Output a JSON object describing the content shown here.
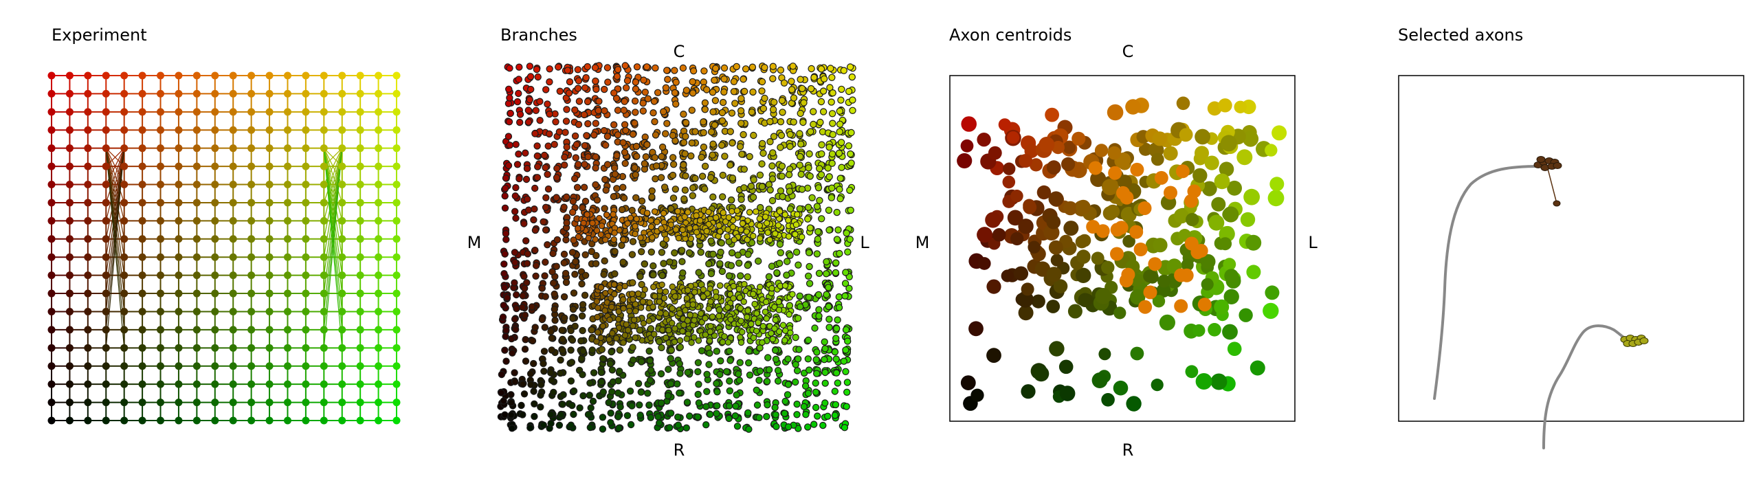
{
  "chart_data": [
    {
      "type": "scatter",
      "title": "Experiment",
      "grid": {
        "columns": 20,
        "rows": 20
      },
      "color_map": {
        "top-left": "#d10000",
        "top-right": "#e8e800",
        "bottom-left": "#000000",
        "bottom-right": "#00dd00"
      },
      "crossed_columns": [
        4,
        16
      ]
    },
    {
      "type": "scatter",
      "title": "Branches",
      "direction_labels": {
        "top": "C",
        "bottom": "R",
        "left": "M",
        "right": "L"
      },
      "approx_point_count": 2200
    },
    {
      "type": "scatter",
      "title": "Axon centroids",
      "direction_labels": {
        "top": "C",
        "bottom": "R",
        "left": "M",
        "right": "L"
      },
      "approx_point_count": 320
    },
    {
      "type": "line",
      "title": "Selected axons",
      "series_count": 2
    }
  ],
  "colors": {
    "axon_trace": "#888888",
    "cluster_dark": "#5c3312",
    "cluster_olive": "#a8a818"
  }
}
